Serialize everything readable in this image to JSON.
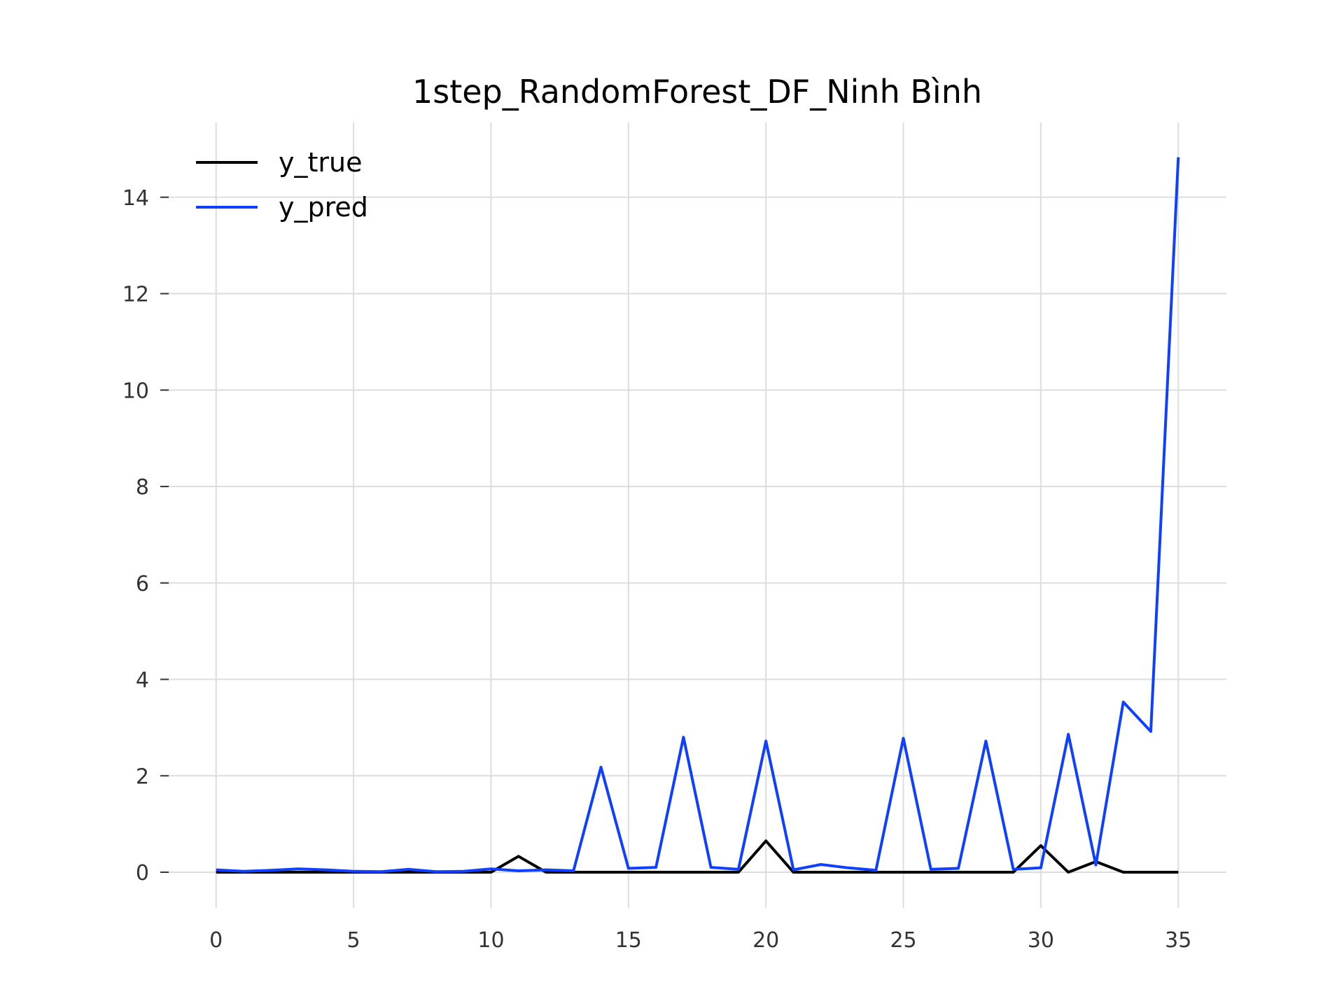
{
  "chart_data": {
    "type": "line",
    "title": "1step_RandomForest_DF_Ninh Bình",
    "xlabel": "",
    "ylabel": "",
    "xlim": [
      -1.75,
      36.75
    ],
    "ylim": [
      -0.74,
      15.55
    ],
    "xticks": [
      0,
      5,
      10,
      15,
      20,
      25,
      30,
      35
    ],
    "yticks": [
      0,
      2,
      4,
      6,
      8,
      10,
      12,
      14
    ],
    "grid": true,
    "legend_position": "top-left",
    "x": [
      0,
      1,
      2,
      3,
      4,
      5,
      6,
      7,
      8,
      9,
      10,
      11,
      12,
      13,
      14,
      15,
      16,
      17,
      18,
      19,
      20,
      21,
      22,
      23,
      24,
      25,
      26,
      27,
      28,
      29,
      30,
      31,
      32,
      33,
      34,
      35
    ],
    "series": [
      {
        "name": "y_true",
        "color": "#000000",
        "values": [
          0,
          0,
          0,
          0,
          0,
          0,
          0,
          0,
          0,
          0,
          0,
          0.33,
          0,
          0,
          0,
          0,
          0,
          0,
          0,
          0,
          0.65,
          0,
          0,
          0,
          0,
          0,
          0,
          0,
          0,
          0,
          0.55,
          0,
          0.22,
          0,
          0,
          0
        ]
      },
      {
        "name": "y_pred",
        "color": "#0f3fff",
        "values": [
          0.05,
          0.02,
          0.04,
          0.07,
          0.05,
          0.02,
          0.01,
          0.06,
          0.01,
          0.02,
          0.07,
          0.03,
          0.05,
          0.03,
          2.18,
          0.08,
          0.1,
          2.8,
          0.1,
          0.06,
          2.72,
          0.05,
          0.16,
          0.09,
          0.04,
          2.78,
          0.06,
          0.08,
          2.72,
          0.06,
          0.09,
          2.86,
          0.15,
          3.53,
          2.92,
          14.83
        ]
      }
    ]
  }
}
